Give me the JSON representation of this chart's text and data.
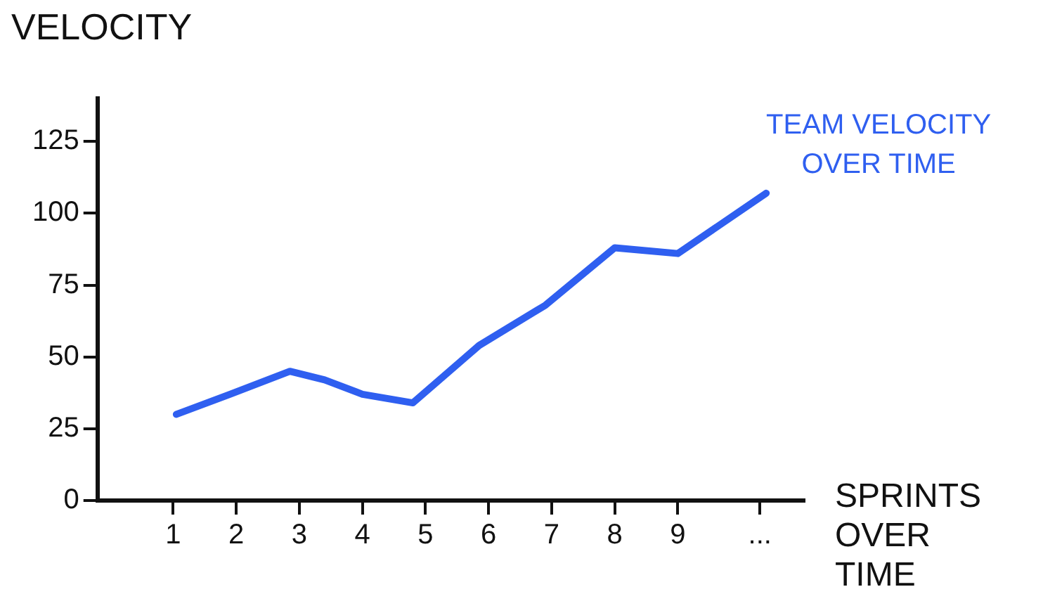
{
  "chart_data": {
    "type": "line",
    "xlabel": "SPRINTS OVER TIME",
    "ylabel": "VELOCITY",
    "x": [
      1.05,
      1.9,
      2.85,
      3.4,
      4.0,
      4.8,
      5.85,
      6.9,
      8.0,
      9.0,
      10.4
    ],
    "series": [
      {
        "name": "TEAM VELOCITY OVER TIME",
        "color": "#2f5ff0",
        "values": [
          30,
          37,
          45,
          42,
          37,
          34,
          54,
          68,
          88,
          86,
          107
        ]
      }
    ],
    "xlim": [
      -0.2,
      11
    ],
    "xticks": [
      1,
      2,
      3,
      4,
      5,
      6,
      7,
      8,
      9,
      {
        "value": 10.3,
        "label": "..."
      }
    ],
    "ylim": [
      0,
      140
    ],
    "yticks": [
      0,
      25,
      50,
      75,
      100,
      125
    ],
    "grid": false,
    "legend": false,
    "marker": "none",
    "line_style": "solid"
  }
}
